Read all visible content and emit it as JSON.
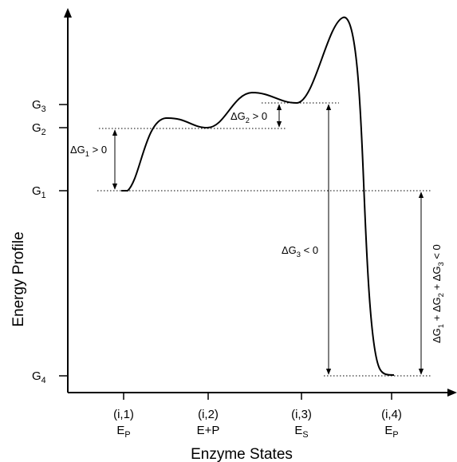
{
  "diagram": {
    "y_axis_title": "Energy Profile",
    "x_axis_title": "Enzyme States",
    "levels": [
      {
        "id": "g1",
        "base": "G",
        "sub": "1"
      },
      {
        "id": "g2",
        "base": "G",
        "sub": "2"
      },
      {
        "id": "g3",
        "base": "G",
        "sub": "3"
      },
      {
        "id": "g4",
        "base": "G",
        "sub": "4"
      }
    ],
    "states": [
      {
        "index": "(i,1)",
        "base": "E",
        "sub": "P"
      },
      {
        "index": "(i,2)",
        "base": "E+P",
        "sub": ""
      },
      {
        "index": "(i,3)",
        "base": "E",
        "sub": "S"
      },
      {
        "index": "(i,4)",
        "base": "E",
        "sub": "P"
      }
    ],
    "annotations": {
      "dg1": {
        "pre": "ΔG",
        "sub": "1",
        "post": " > 0"
      },
      "dg2": {
        "pre": "ΔG",
        "sub": "2",
        "post": " > 0"
      },
      "dg3": {
        "pre": "ΔG",
        "sub": "3",
        "post": " < 0"
      },
      "dg_total": {
        "parts": [
          {
            "t": "ΔG",
            "s": "1"
          },
          {
            "t": " + ΔG",
            "s": "2"
          },
          {
            "t": " + ΔG",
            "s": "3"
          },
          {
            "t": " < 0",
            "s": ""
          }
        ]
      }
    }
  }
}
